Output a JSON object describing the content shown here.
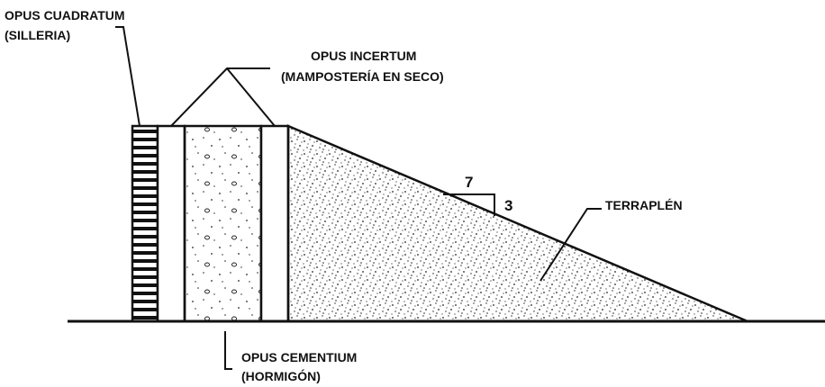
{
  "labels": {
    "cuadratum": {
      "title": "OPUS CUADRATUM",
      "subtitle": "(SILLERIA)"
    },
    "incertum": {
      "title": "OPUS INCERTUM",
      "subtitle": "(MAMPOSTERÍA EN SECO)"
    },
    "cementium": {
      "title": "OPUS CEMENTIUM",
      "subtitle": "(HORMIGÓN)"
    },
    "terraplen": "TERRAPLÉN",
    "slope_run": "7",
    "slope_rise": "3"
  }
}
